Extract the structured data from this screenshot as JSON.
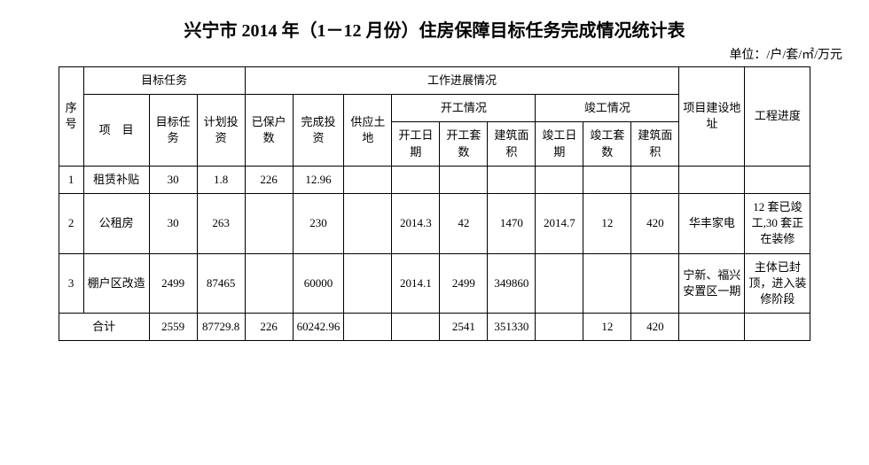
{
  "title": "兴宁市 2014 年（1－12 月份）住房保障目标任务完成情况统计表",
  "unit_label": "单位：/户/套/㎡/万元",
  "headers": {
    "seq": "序号",
    "target_task_group": "目标任务",
    "progress_group": "工作进展情况",
    "addr": "项目建设地址",
    "progress_col": "工程进度",
    "project": "项　目",
    "target_count": "目标任务",
    "plan_invest": "计划投资",
    "insured_households": "已保户数",
    "completed_invest": "完成投资",
    "land_supply": "供应土地",
    "start_group": "开工情况",
    "finish_group": "竣工情况",
    "start_date": "开工日期",
    "start_count": "开工套数",
    "start_area": "建筑面积",
    "finish_date": "竣工日期",
    "finish_count": "竣工套数",
    "finish_area": "建筑面积"
  },
  "rows": [
    {
      "seq": "1",
      "project": "租赁补贴",
      "target_count": "30",
      "plan_invest": "1.8",
      "insured_households": "226",
      "completed_invest": "12.96",
      "land_supply": "",
      "start_date": "",
      "start_count": "",
      "start_area": "",
      "finish_date": "",
      "finish_count": "",
      "finish_area": "",
      "addr": "",
      "progress": ""
    },
    {
      "seq": "2",
      "project": "公租房",
      "target_count": "30",
      "plan_invest": "263",
      "insured_households": "",
      "completed_invest": "230",
      "land_supply": "",
      "start_date": "2014.3",
      "start_count": "42",
      "start_area": "1470",
      "finish_date": "2014.7",
      "finish_count": "12",
      "finish_area": "420",
      "addr": "华丰家电",
      "progress": "12 套已竣工,30 套正在装修"
    },
    {
      "seq": "3",
      "project": "棚户区改造",
      "target_count": "2499",
      "plan_invest": "87465",
      "insured_households": "",
      "completed_invest": "60000",
      "land_supply": "",
      "start_date": "2014.1",
      "start_count": "2499",
      "start_area": "349860",
      "finish_date": "",
      "finish_count": "",
      "finish_area": "",
      "addr": "宁新、福兴安置区一期",
      "progress": "主体已封顶，进入装修阶段"
    }
  ],
  "total": {
    "label": "合计",
    "target_count": "2559",
    "plan_invest": "87729.8",
    "insured_households": "226",
    "completed_invest": "60242.96",
    "land_supply": "",
    "start_date": "",
    "start_count": "2541",
    "start_area": "351330",
    "finish_date": "",
    "finish_count": "12",
    "finish_area": "420",
    "addr": "",
    "progress": ""
  },
  "style": {
    "type": "table",
    "columns": 15,
    "title_fontsize": 20,
    "body_fontsize": 13,
    "border_color": "#000000",
    "background_color": "#ffffff",
    "text_color": "#000000"
  }
}
